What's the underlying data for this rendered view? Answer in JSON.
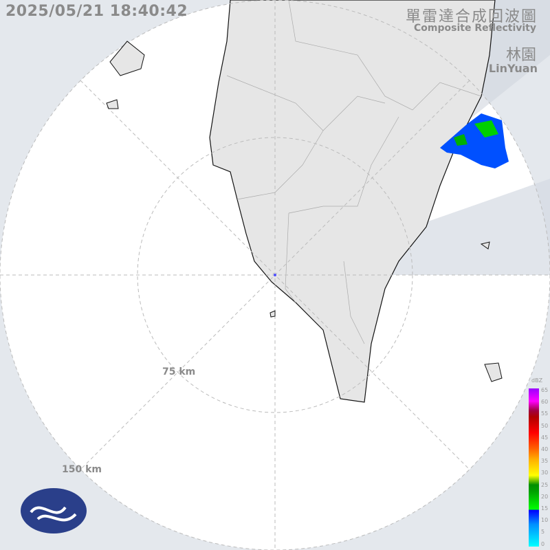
{
  "timestamp": "2025/05/21 18:40:42",
  "product": {
    "title_zh": "單雷達合成回波圖",
    "title_en": "Composite Reflectivity"
  },
  "station": {
    "name_zh": "林園",
    "name_en": "LinYuan"
  },
  "range_rings": [
    {
      "label": "75 km"
    },
    {
      "label": "150 km"
    }
  ],
  "legend": {
    "unit": "dBZ",
    "ticks": [
      "65",
      "60",
      "55",
      "50",
      "45",
      "40",
      "35",
      "30",
      "25",
      "20",
      "15",
      "10",
      "5",
      "0"
    ]
  },
  "colors": {
    "background": "#e4e8ed",
    "land": "#e6e6e6",
    "echo_weak": "#0050ff",
    "echo_moderate": "#00c000"
  },
  "logo": "cwa-logo"
}
